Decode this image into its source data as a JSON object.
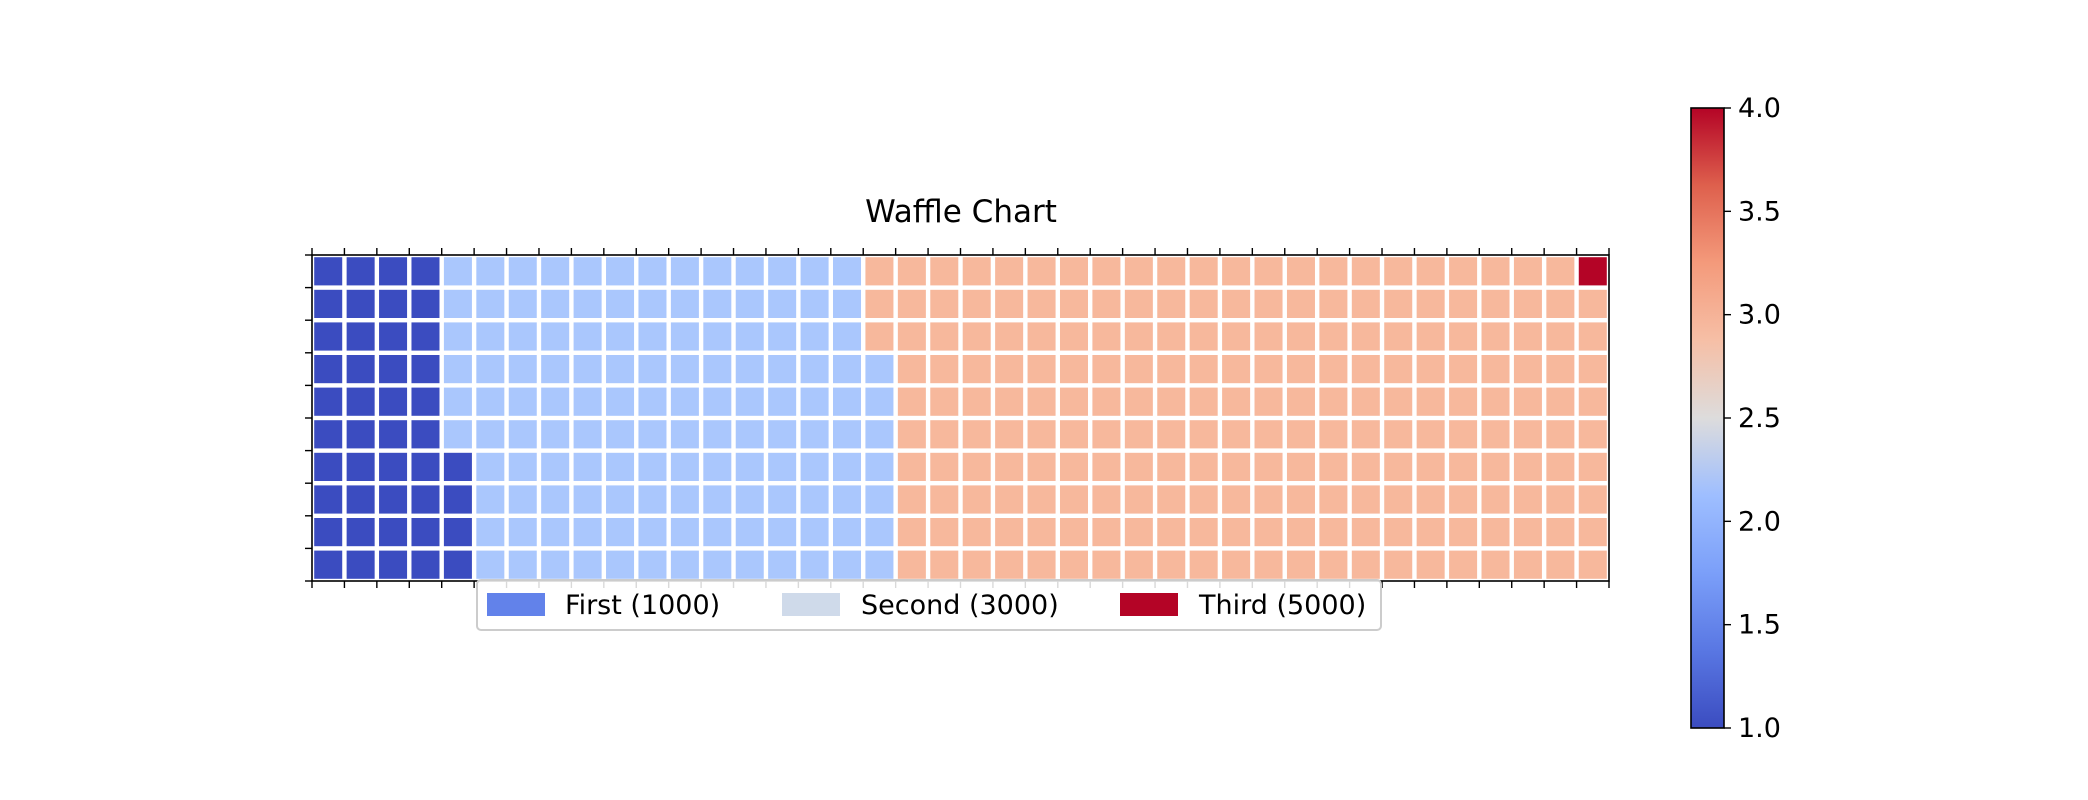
{
  "chart_data": {
    "type": "waffle",
    "title": "Waffle Chart",
    "rows": 10,
    "columns": 40,
    "category_order": "column-major from left, bottom to top",
    "categories": [
      {
        "label": "First (1000)",
        "value": 1000,
        "cells": 44,
        "color_value": 1.0,
        "color": "#3b4cc0"
      },
      {
        "label": "Second (3000)",
        "value": 3000,
        "cells": 133,
        "color_value": 2.0,
        "color": "#aac7fd"
      },
      {
        "label": "Third (5000)",
        "value": 5000,
        "cells": 222,
        "color_value": 3.0,
        "color": "#f7b89c"
      },
      {
        "label": "",
        "value": null,
        "cells": 1,
        "color_value": 4.0,
        "color": "#b40426"
      }
    ],
    "legend": {
      "placement": "bottom-center",
      "entries": [
        {
          "label": "First (1000)",
          "color": "#6282ea"
        },
        {
          "label": "Second (3000)",
          "color": "#cfdaea"
        },
        {
          "label": "Third (5000)",
          "color": "#b40426"
        }
      ]
    },
    "colorbar": {
      "colormap": "coolwarm",
      "range": [
        1.0,
        4.0
      ],
      "ticks": [
        "1.0",
        "1.5",
        "2.0",
        "2.5",
        "3.0",
        "3.5",
        "4.0"
      ],
      "tick_values": [
        1.0,
        1.5,
        2.0,
        2.5,
        3.0,
        3.5,
        4.0
      ]
    },
    "grid": true
  }
}
